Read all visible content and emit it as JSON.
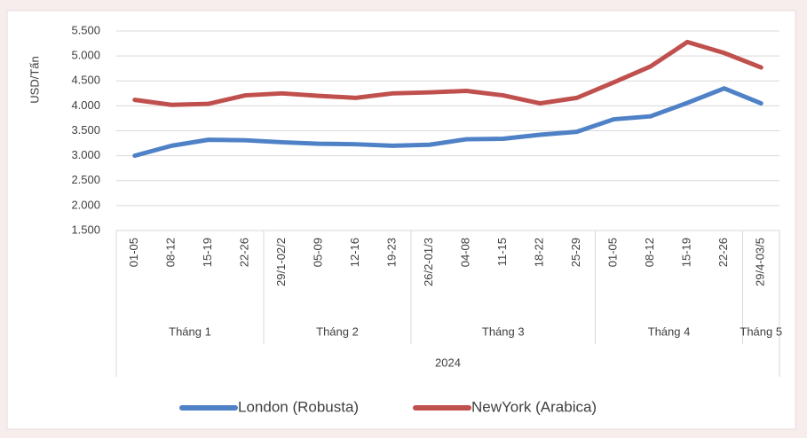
{
  "chart_data": {
    "type": "line",
    "ylabel": "USD/Tấn",
    "categories": [
      "01-05",
      "08-12",
      "15-19",
      "22-26",
      "29/1-02/2",
      "05-09",
      "12-16",
      "19-23",
      "26/2-01/3",
      "04-08",
      "11-15",
      "18-22",
      "25-29",
      "01-05",
      "08-12",
      "15-19",
      "22-26",
      "29/4-03/5"
    ],
    "groups": [
      {
        "label": "Tháng 1",
        "span": 4
      },
      {
        "label": "Tháng 2",
        "span": 4
      },
      {
        "label": "Tháng 3",
        "span": 5
      },
      {
        "label": "Tháng 4",
        "span": 4
      },
      {
        "label": "Tháng 5",
        "span": 1
      }
    ],
    "year": "2024",
    "series": [
      {
        "name": "London (Robusta)",
        "color": "#4f81c7",
        "values": [
          3000,
          3200,
          3320,
          3310,
          3270,
          3240,
          3230,
          3200,
          3220,
          3330,
          3340,
          3420,
          3480,
          3730,
          3790,
          4060,
          4350,
          4050
        ]
      },
      {
        "name": "NewYork (Arabica)",
        "color": "#c0504d",
        "values": [
          4120,
          4020,
          4040,
          4210,
          4250,
          4200,
          4160,
          4250,
          4270,
          4300,
          4210,
          4050,
          4160,
          4470,
          4790,
          5280,
          5060,
          4770
        ]
      }
    ],
    "ylim": [
      1500,
      5500
    ],
    "yticks": [
      {
        "value": 1500,
        "label": "1.500"
      },
      {
        "value": 2000,
        "label": "2.000"
      },
      {
        "value": 2500,
        "label": "2.500"
      },
      {
        "value": 3000,
        "label": "3.000"
      },
      {
        "value": 3500,
        "label": "3.500"
      },
      {
        "value": 4000,
        "label": "4.000"
      },
      {
        "value": 4500,
        "label": "4.500"
      },
      {
        "value": 5000,
        "label": "5.000"
      },
      {
        "value": 5500,
        "label": "5.500"
      }
    ],
    "grid": true,
    "legend": "bottom"
  }
}
